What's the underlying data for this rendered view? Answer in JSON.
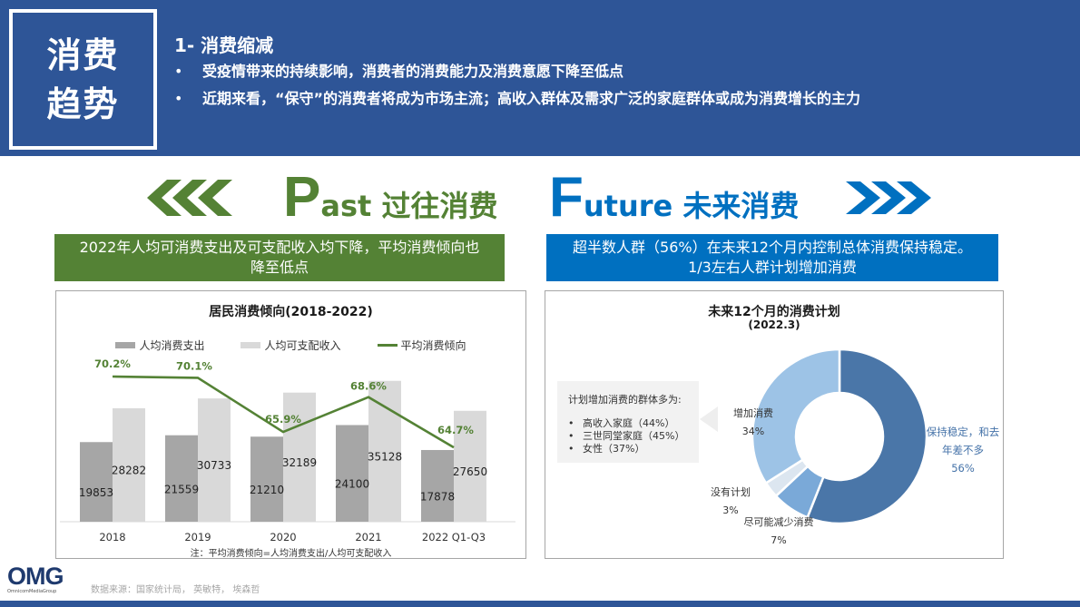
{
  "header": {
    "title_line1": "消费",
    "title_line2": "趋势",
    "section_title": "1- 消费缩减",
    "bullets": [
      "受疫情带来的持续影响，消费者的消费能力及消费意愿下降至低点",
      "近期来看，“保守”的消费者将成为市场主流；高收入群体及需求广泛的家庭群体或成为消费增长的主力"
    ],
    "bullet_char": "•",
    "bg_color": "#2e5597"
  },
  "past": {
    "big_letter": "P",
    "rest": "ast 过往消费",
    "banner": "2022年人均可消费支出及可支配收入均下降，平均消费倾向也降至低点",
    "banner_line1": "2022年人均可消费支出及可支配收入均下降，平均消费倾向也",
    "banner_line2": "降至低点",
    "color": "#548235",
    "icon": "chevrons-left-icon"
  },
  "future": {
    "big_letter": "F",
    "rest": "uture 未来消费",
    "banner_line1": "超半数人群（56%）在未来12个月内控制总体消费保持稳定。",
    "banner_line2": "1/3左右人群计划增加消费",
    "color": "#0070c0",
    "icon": "chevrons-right-icon"
  },
  "chart_data": [
    {
      "type": "bar",
      "title": "居民消费倾向(2018-2022)",
      "categories": [
        "2018",
        "2019",
        "2020",
        "2021",
        "2022 Q1-Q3"
      ],
      "series": [
        {
          "name": "人均消费支出",
          "type": "bar",
          "color": "#a6a6a6",
          "values": [
            19853,
            21559,
            21210,
            24100,
            17878
          ]
        },
        {
          "name": "人均可支配收入",
          "type": "bar",
          "color": "#d9d9d9",
          "values": [
            28282,
            30733,
            32189,
            35128,
            27650
          ]
        },
        {
          "name": "平均消费倾向",
          "type": "line",
          "color": "#548235",
          "values": [
            70.2,
            70.1,
            65.9,
            68.6,
            64.7
          ],
          "labels": [
            "70.2%",
            "70.1%",
            "65.9%",
            "68.6%",
            "64.7%"
          ]
        }
      ],
      "legend_position": "top",
      "grid": false,
      "note": "注：平均消费倾向=人均消费支出/人均可支配收入"
    },
    {
      "type": "pie",
      "donut": true,
      "title": "未来12个月的消费计划",
      "subtitle": "(2022.3)",
      "slices": [
        {
          "label": "保持稳定，和去年差不多",
          "label_line1": "保持稳定，和去",
          "label_line2": "年差不多",
          "value": 56,
          "pct": "56%",
          "color": "#4a76a8"
        },
        {
          "label": "尽可能减少消费",
          "value": 7,
          "pct": "7%",
          "color": "#7aa9d8"
        },
        {
          "label": "没有计划",
          "value": 3,
          "pct": "3%",
          "color": "#dce6f0"
        },
        {
          "label": "增加消费",
          "value": 34,
          "pct": "34%",
          "color": "#9dc3e6"
        }
      ],
      "callout": {
        "title": "计划增加消费的群体多为:",
        "items": [
          "高收入家庭（44%）",
          "三世同堂家庭（45%）",
          "女性（37%）"
        ]
      }
    }
  ],
  "footer": {
    "logo_text": "OMG",
    "logo_sub": "OmnicomMediaGroup",
    "source": "数据来源：国家统计局， 英敏特， 埃森哲"
  }
}
